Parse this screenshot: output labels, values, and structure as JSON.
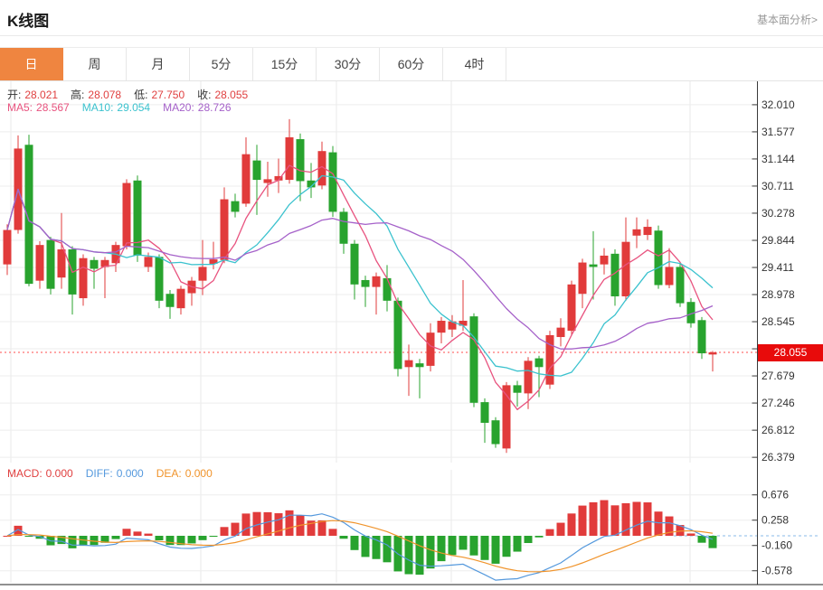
{
  "header": {
    "title": "K线图",
    "link": "基本面分析>"
  },
  "tabs": {
    "items": [
      {
        "label": "日",
        "selected": true
      },
      {
        "label": "周",
        "selected": false
      },
      {
        "label": "月",
        "selected": false
      },
      {
        "label": "5分",
        "selected": false
      },
      {
        "label": "15分",
        "selected": false
      },
      {
        "label": "30分",
        "selected": false
      },
      {
        "label": "60分",
        "selected": false
      },
      {
        "label": "4时",
        "selected": false
      }
    ]
  },
  "info_bar": {
    "ohlc": [
      {
        "label": "开:",
        "value": "28.021"
      },
      {
        "label": "高:",
        "value": "28.078"
      },
      {
        "label": "低:",
        "value": "27.750"
      },
      {
        "label": "收:",
        "value": "28.055"
      }
    ],
    "ohlc_value_color": "#e04040",
    "ma": [
      {
        "label": "MA5:",
        "value": "28.567",
        "color": "#e8537f"
      },
      {
        "label": "MA10:",
        "value": "29.054",
        "color": "#3bc2ce"
      },
      {
        "label": "MA20:",
        "value": "28.726",
        "color": "#a561c9"
      }
    ]
  },
  "macd_bar": {
    "items": [
      {
        "label": "MACD:",
        "value": "0.000",
        "color": "#e04040"
      },
      {
        "label": "DIFF:",
        "value": "0.000",
        "color": "#5599dd"
      },
      {
        "label": "DEA:",
        "value": "0.000",
        "color": "#f0942c"
      }
    ]
  },
  "price_marker": {
    "value": "28.055"
  },
  "colors": {
    "up": "#e13b3b",
    "down": "#28a32e",
    "ma5": "#e8537f",
    "ma10": "#3bc2ce",
    "ma20": "#a561c9",
    "grid": "#ededed",
    "vgrid": "#e9e9e9",
    "axis": "#3a3a3a",
    "price_line": "#ff4d4d",
    "price_box": "#e80b0b",
    "diff_line": "#5599dd",
    "dea_line": "#f0942c",
    "zero_dash": "#8ab8e8",
    "tick_text": "#333333",
    "selected_tab": "#ef8540"
  },
  "chart_data": {
    "type": "candlestick+macd",
    "title": "K线图",
    "legend": [
      "MA5",
      "MA10",
      "MA20",
      "MACD",
      "DIFF",
      "DEA"
    ],
    "grid": true,
    "main": {
      "y_ticks": [
        "32.010",
        "31.577",
        "31.144",
        "30.711",
        "30.278",
        "29.844",
        "29.411",
        "28.978",
        "28.545",
        "28.112",
        "27.679",
        "27.246",
        "26.812",
        "26.379"
      ],
      "y_step": 0.433,
      "current_price": 28.055,
      "ma_periods": [
        5,
        10,
        20
      ],
      "ma_shown_values": {
        "MA5": 28.567,
        "MA10": 29.054,
        "MA20": 28.726
      },
      "ohlc_shown": {
        "open": 28.021,
        "high": 28.078,
        "low": 27.75,
        "close": 28.055
      },
      "candles_ohlc": [
        [
          29.46,
          30.1,
          29.29,
          30.01
        ],
        [
          30.01,
          31.52,
          29.95,
          31.31
        ],
        [
          31.37,
          31.53,
          29.11,
          29.15
        ],
        [
          29.2,
          29.83,
          29.07,
          29.77
        ],
        [
          29.85,
          29.9,
          28.98,
          29.07
        ],
        [
          29.25,
          30.28,
          29.07,
          29.7
        ],
        [
          29.7,
          29.75,
          28.66,
          28.98
        ],
        [
          28.92,
          29.62,
          28.8,
          29.56
        ],
        [
          29.53,
          29.58,
          29.07,
          29.39
        ],
        [
          29.42,
          29.58,
          28.92,
          29.53
        ],
        [
          29.48,
          29.82,
          29.34,
          29.77
        ],
        [
          29.75,
          30.82,
          29.7,
          30.76
        ],
        [
          30.8,
          30.88,
          29.5,
          29.6
        ],
        [
          29.42,
          29.65,
          29.34,
          29.58
        ],
        [
          29.58,
          29.62,
          28.76,
          28.88
        ],
        [
          28.99,
          29.05,
          28.59,
          28.78
        ],
        [
          28.76,
          29.12,
          28.66,
          29.07
        ],
        [
          29.0,
          29.26,
          28.8,
          29.2
        ],
        [
          29.2,
          29.85,
          28.97,
          29.42
        ],
        [
          29.47,
          29.82,
          29.38,
          29.54
        ],
        [
          29.53,
          30.69,
          29.48,
          30.5
        ],
        [
          30.47,
          30.59,
          30.21,
          30.3
        ],
        [
          30.43,
          31.49,
          30.38,
          31.22
        ],
        [
          31.12,
          31.37,
          30.25,
          30.81
        ],
        [
          30.76,
          31.1,
          30.54,
          30.82
        ],
        [
          30.8,
          31.15,
          30.6,
          30.87
        ],
        [
          30.81,
          31.78,
          30.75,
          31.49
        ],
        [
          31.46,
          31.55,
          30.47,
          30.79
        ],
        [
          30.8,
          31.08,
          30.52,
          30.69
        ],
        [
          30.72,
          31.42,
          30.66,
          31.27
        ],
        [
          31.25,
          31.35,
          30.22,
          30.3
        ],
        [
          30.3,
          30.36,
          29.63,
          29.79
        ],
        [
          29.79,
          29.85,
          28.9,
          29.14
        ],
        [
          29.21,
          29.28,
          28.78,
          29.1
        ],
        [
          29.1,
          29.33,
          28.66,
          29.27
        ],
        [
          29.24,
          29.45,
          28.71,
          28.88
        ],
        [
          28.88,
          28.93,
          27.67,
          27.79
        ],
        [
          27.82,
          28.18,
          27.36,
          27.93
        ],
        [
          27.88,
          27.95,
          27.32,
          27.82
        ],
        [
          27.84,
          28.52,
          27.75,
          28.37
        ],
        [
          28.37,
          28.62,
          28.2,
          28.56
        ],
        [
          28.42,
          28.65,
          28.3,
          28.55
        ],
        [
          28.48,
          29.21,
          28.4,
          28.56
        ],
        [
          28.63,
          28.68,
          27.18,
          27.25
        ],
        [
          27.26,
          27.32,
          26.61,
          26.93
        ],
        [
          26.97,
          27.02,
          26.53,
          26.59
        ],
        [
          26.52,
          27.58,
          26.45,
          27.53
        ],
        [
          27.53,
          27.6,
          27.19,
          27.41
        ],
        [
          27.4,
          27.98,
          27.15,
          27.92
        ],
        [
          27.96,
          28.0,
          27.34,
          27.82
        ],
        [
          27.54,
          28.4,
          27.47,
          28.33
        ],
        [
          28.3,
          28.6,
          28.15,
          28.45
        ],
        [
          28.4,
          29.2,
          28.33,
          29.14
        ],
        [
          28.99,
          29.55,
          28.76,
          29.49
        ],
        [
          29.46,
          29.99,
          28.9,
          29.42
        ],
        [
          29.46,
          29.72,
          29.3,
          29.6
        ],
        [
          29.63,
          29.7,
          28.8,
          28.95
        ],
        [
          28.95,
          30.21,
          28.88,
          29.82
        ],
        [
          29.92,
          30.21,
          29.72,
          30.02
        ],
        [
          29.93,
          30.18,
          29.85,
          30.06
        ],
        [
          30.0,
          30.08,
          29.07,
          29.13
        ],
        [
          29.13,
          29.72,
          29.08,
          29.42
        ],
        [
          29.42,
          29.48,
          28.78,
          28.84
        ],
        [
          28.86,
          28.92,
          28.45,
          28.52
        ],
        [
          28.57,
          28.62,
          27.95,
          28.04
        ],
        [
          28.021,
          28.078,
          27.75,
          28.055
        ]
      ]
    },
    "macd": {
      "y_ticks": [
        "0.676",
        "0.258",
        "-0.160",
        "-0.578"
      ],
      "params": [
        12,
        26,
        9
      ],
      "shown_values": {
        "MACD": 0.0,
        "DIFF": 0.0,
        "DEA": 0.0
      }
    }
  }
}
